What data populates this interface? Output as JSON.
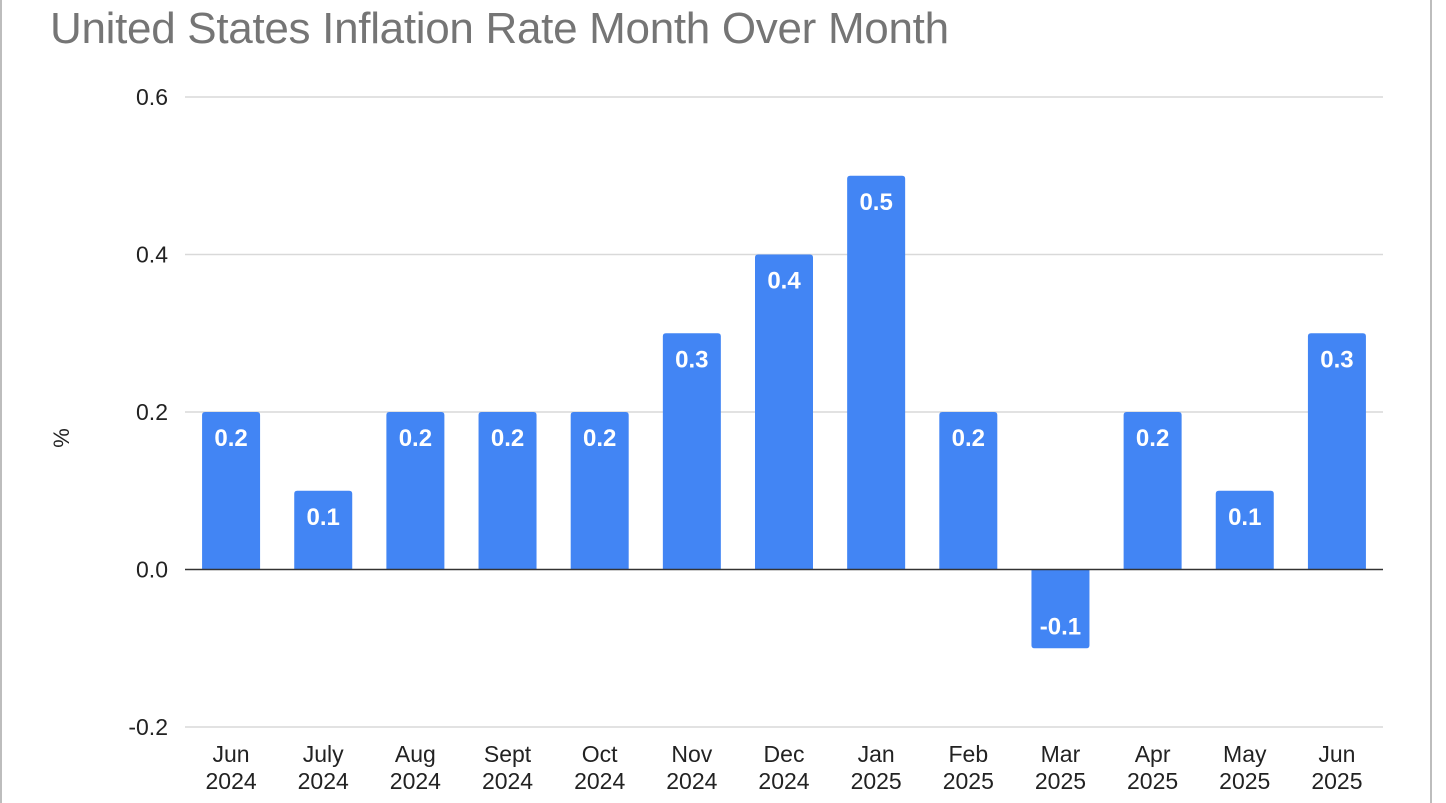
{
  "chart_data": {
    "type": "bar",
    "title": "United States Inflation Rate Month Over Month",
    "ylabel": "%",
    "xlabel": "",
    "ylim": [
      -0.2,
      0.6
    ],
    "yticks": [
      "0.6",
      "0.4",
      "0.2",
      "0.0",
      "-0.2"
    ],
    "ytick_values": [
      0.6,
      0.4,
      0.2,
      0.0,
      -0.2
    ],
    "grid": true,
    "legend": "none",
    "bar_color": "#4285f4",
    "categories": [
      [
        "Jun",
        "2024"
      ],
      [
        "July",
        "2024"
      ],
      [
        "Aug",
        "2024"
      ],
      [
        "Sept",
        "2024"
      ],
      [
        "Oct",
        "2024"
      ],
      [
        "Nov",
        "2024"
      ],
      [
        "Dec",
        "2024"
      ],
      [
        "Jan",
        "2025"
      ],
      [
        "Feb",
        "2025"
      ],
      [
        "Mar",
        "2025"
      ],
      [
        "Apr",
        "2025"
      ],
      [
        "May",
        "2025"
      ],
      [
        "Jun",
        "2025"
      ]
    ],
    "values": [
      0.2,
      0.1,
      0.2,
      0.2,
      0.2,
      0.3,
      0.4,
      0.5,
      0.2,
      -0.1,
      0.2,
      0.1,
      0.3
    ],
    "data_labels": [
      "0.2",
      "0.1",
      "0.2",
      "0.2",
      "0.2",
      "0.3",
      "0.4",
      "0.5",
      "0.2",
      "-0.1",
      "0.2",
      "0.1",
      "0.3"
    ]
  }
}
